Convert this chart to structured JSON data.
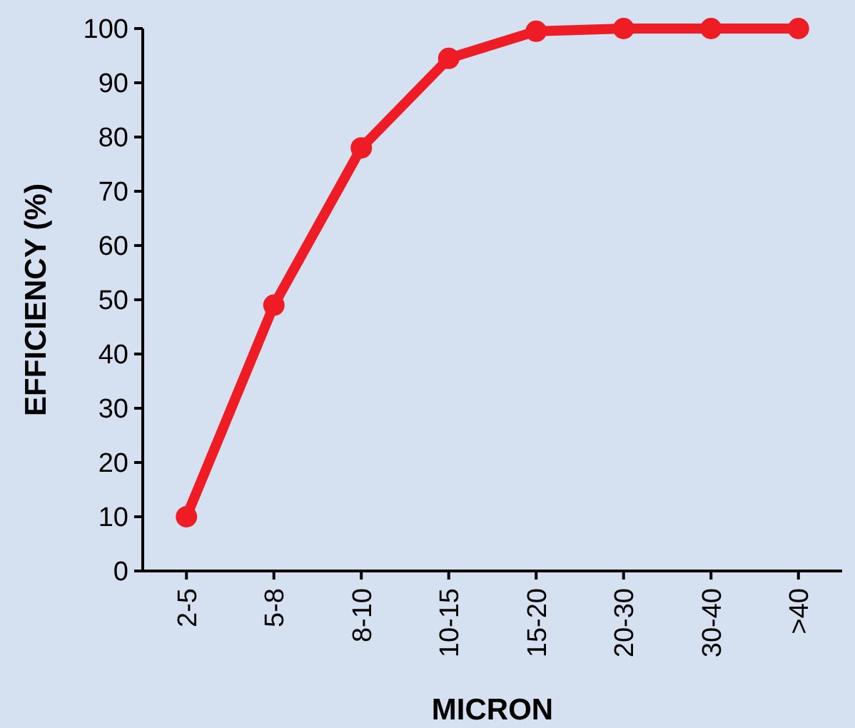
{
  "chart_data": {
    "type": "line",
    "xlabel": "MICRON",
    "ylabel": "EFFICIENCY (%)",
    "categories": [
      "2-5",
      "5-8",
      "8-10",
      "10-15",
      "15-20",
      "20-30",
      "30-40",
      ">40"
    ],
    "series": [
      {
        "color": "#ee1c25",
        "values": [
          10,
          49,
          78,
          94.5,
          99.5,
          100,
          100,
          100
        ]
      }
    ],
    "ylim": [
      0,
      100
    ],
    "yticks": [
      0,
      10,
      20,
      30,
      40,
      50,
      60,
      70,
      80,
      90,
      100
    ],
    "grid": false,
    "marker": "circle",
    "line_style": "solid"
  }
}
